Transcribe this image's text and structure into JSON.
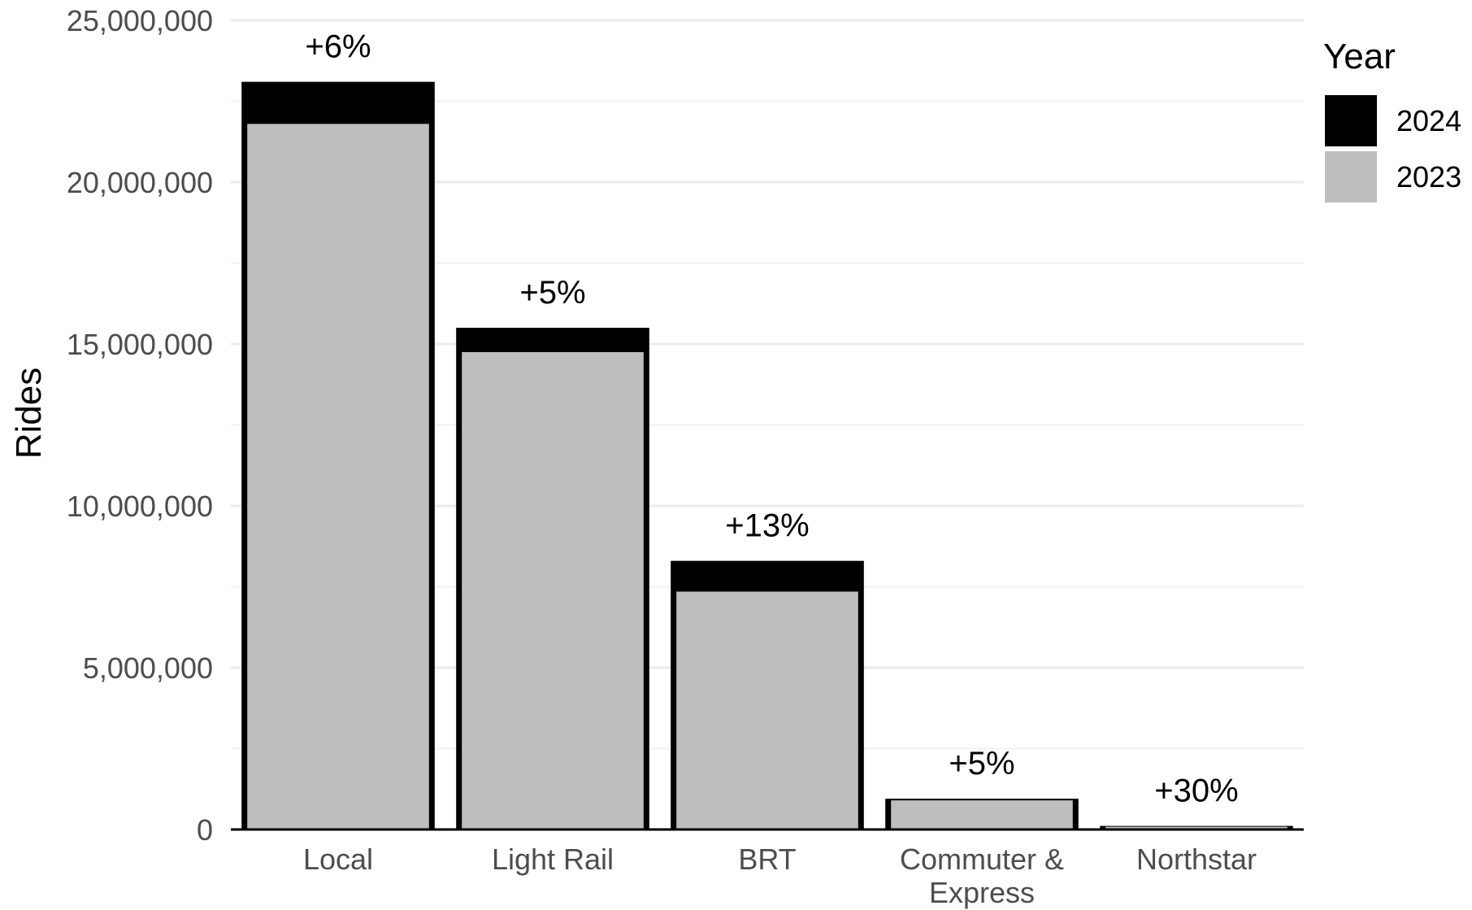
{
  "chart_data": {
    "type": "bar",
    "title": "",
    "xlabel": "",
    "ylabel": "Rides",
    "ylim": [
      0,
      25000000
    ],
    "y_ticks": [
      {
        "value": 0,
        "label": "0"
      },
      {
        "value": 5000000,
        "label": "5,000,000"
      },
      {
        "value": 10000000,
        "label": "10,000,000"
      },
      {
        "value": 15000000,
        "label": "15,000,000"
      },
      {
        "value": 20000000,
        "label": "20,000,000"
      },
      {
        "value": 25000000,
        "label": "25,000,000"
      }
    ],
    "grid": true,
    "categories": [
      "Local",
      "Light Rail",
      "BRT",
      "Commuter & Express",
      "Northstar"
    ],
    "category_label_lines": [
      [
        "Local"
      ],
      [
        "Light Rail"
      ],
      [
        "BRT"
      ],
      [
        "Commuter &",
        "Express"
      ],
      [
        "Northstar"
      ]
    ],
    "series": [
      {
        "name": "2024",
        "color": "#000000",
        "values": [
          23100000,
          15500000,
          8300000,
          950000,
          110000
        ]
      },
      {
        "name": "2023",
        "color": "#bebebe",
        "values": [
          21800000,
          14750000,
          7350000,
          900000,
          85000
        ]
      }
    ],
    "annotations": [
      "+6%",
      "+5%",
      "+13%",
      "+5%",
      "+30%"
    ],
    "legend": {
      "title": "Year",
      "position": "right",
      "entries": [
        {
          "label": "2024",
          "color": "#000000"
        },
        {
          "label": "2023",
          "color": "#bebebe"
        }
      ]
    }
  }
}
